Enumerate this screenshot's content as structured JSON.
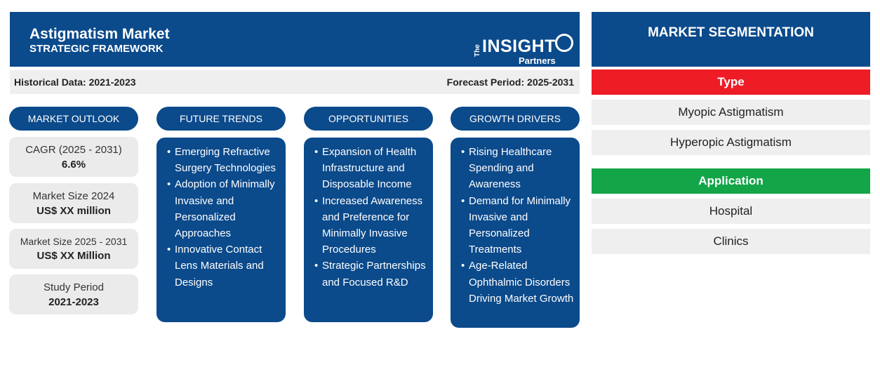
{
  "header": {
    "title": "Astigmatism Market",
    "subtitle": "STRATEGIC FRAMEWORK",
    "logo": {
      "the": "The",
      "insight": "INSIGHT",
      "partners": "Partners"
    }
  },
  "period": {
    "historical": "Historical Data: 2021-2023",
    "forecast": "Forecast Period: 2025-2031"
  },
  "columns": {
    "outlook": "MARKET OUTLOOK",
    "trends": "FUTURE TRENDS",
    "opportunities": "OPPORTUNITIES",
    "drivers": "GROWTH DRIVERS"
  },
  "outlook": [
    {
      "label": "CAGR (2025 - 2031)",
      "value": "6.6%"
    },
    {
      "label": "Market Size 2024",
      "value": "US$ XX million"
    },
    {
      "label": "Market Size 2025 - 2031",
      "value": "US$ XX Million"
    },
    {
      "label": "Study Period",
      "value": "2021-2023"
    }
  ],
  "trends": [
    "Emerging Refractive Surgery Technologies",
    "Adoption of Minimally Invasive and Personalized Approaches",
    "Innovative Contact Lens Materials and Designs"
  ],
  "opportunities": [
    "Expansion of Health Infrastructure and Disposable Income",
    "Increased Awareness and Preference for Minimally Invasive Procedures",
    "Strategic Partnerships and Focused R&D"
  ],
  "drivers": [
    "Rising Healthcare Spending and Awareness",
    "Demand for Minimally Invasive and Personalized Treatments",
    "Age-Related Ophthalmic Disorders Driving Market Growth"
  ],
  "segmentation": {
    "title": "MARKET SEGMENTATION",
    "type_label": "Type",
    "type_color": "#ee1c25",
    "types": [
      "Myopic Astigmatism",
      "Hyperopic Astigmatism"
    ],
    "application_label": "Application",
    "application_color": "#13a548",
    "applications": [
      "Hospital",
      "Clinics"
    ]
  },
  "colors": {
    "primary": "#0b4a8b",
    "light_gray": "#efefef"
  }
}
